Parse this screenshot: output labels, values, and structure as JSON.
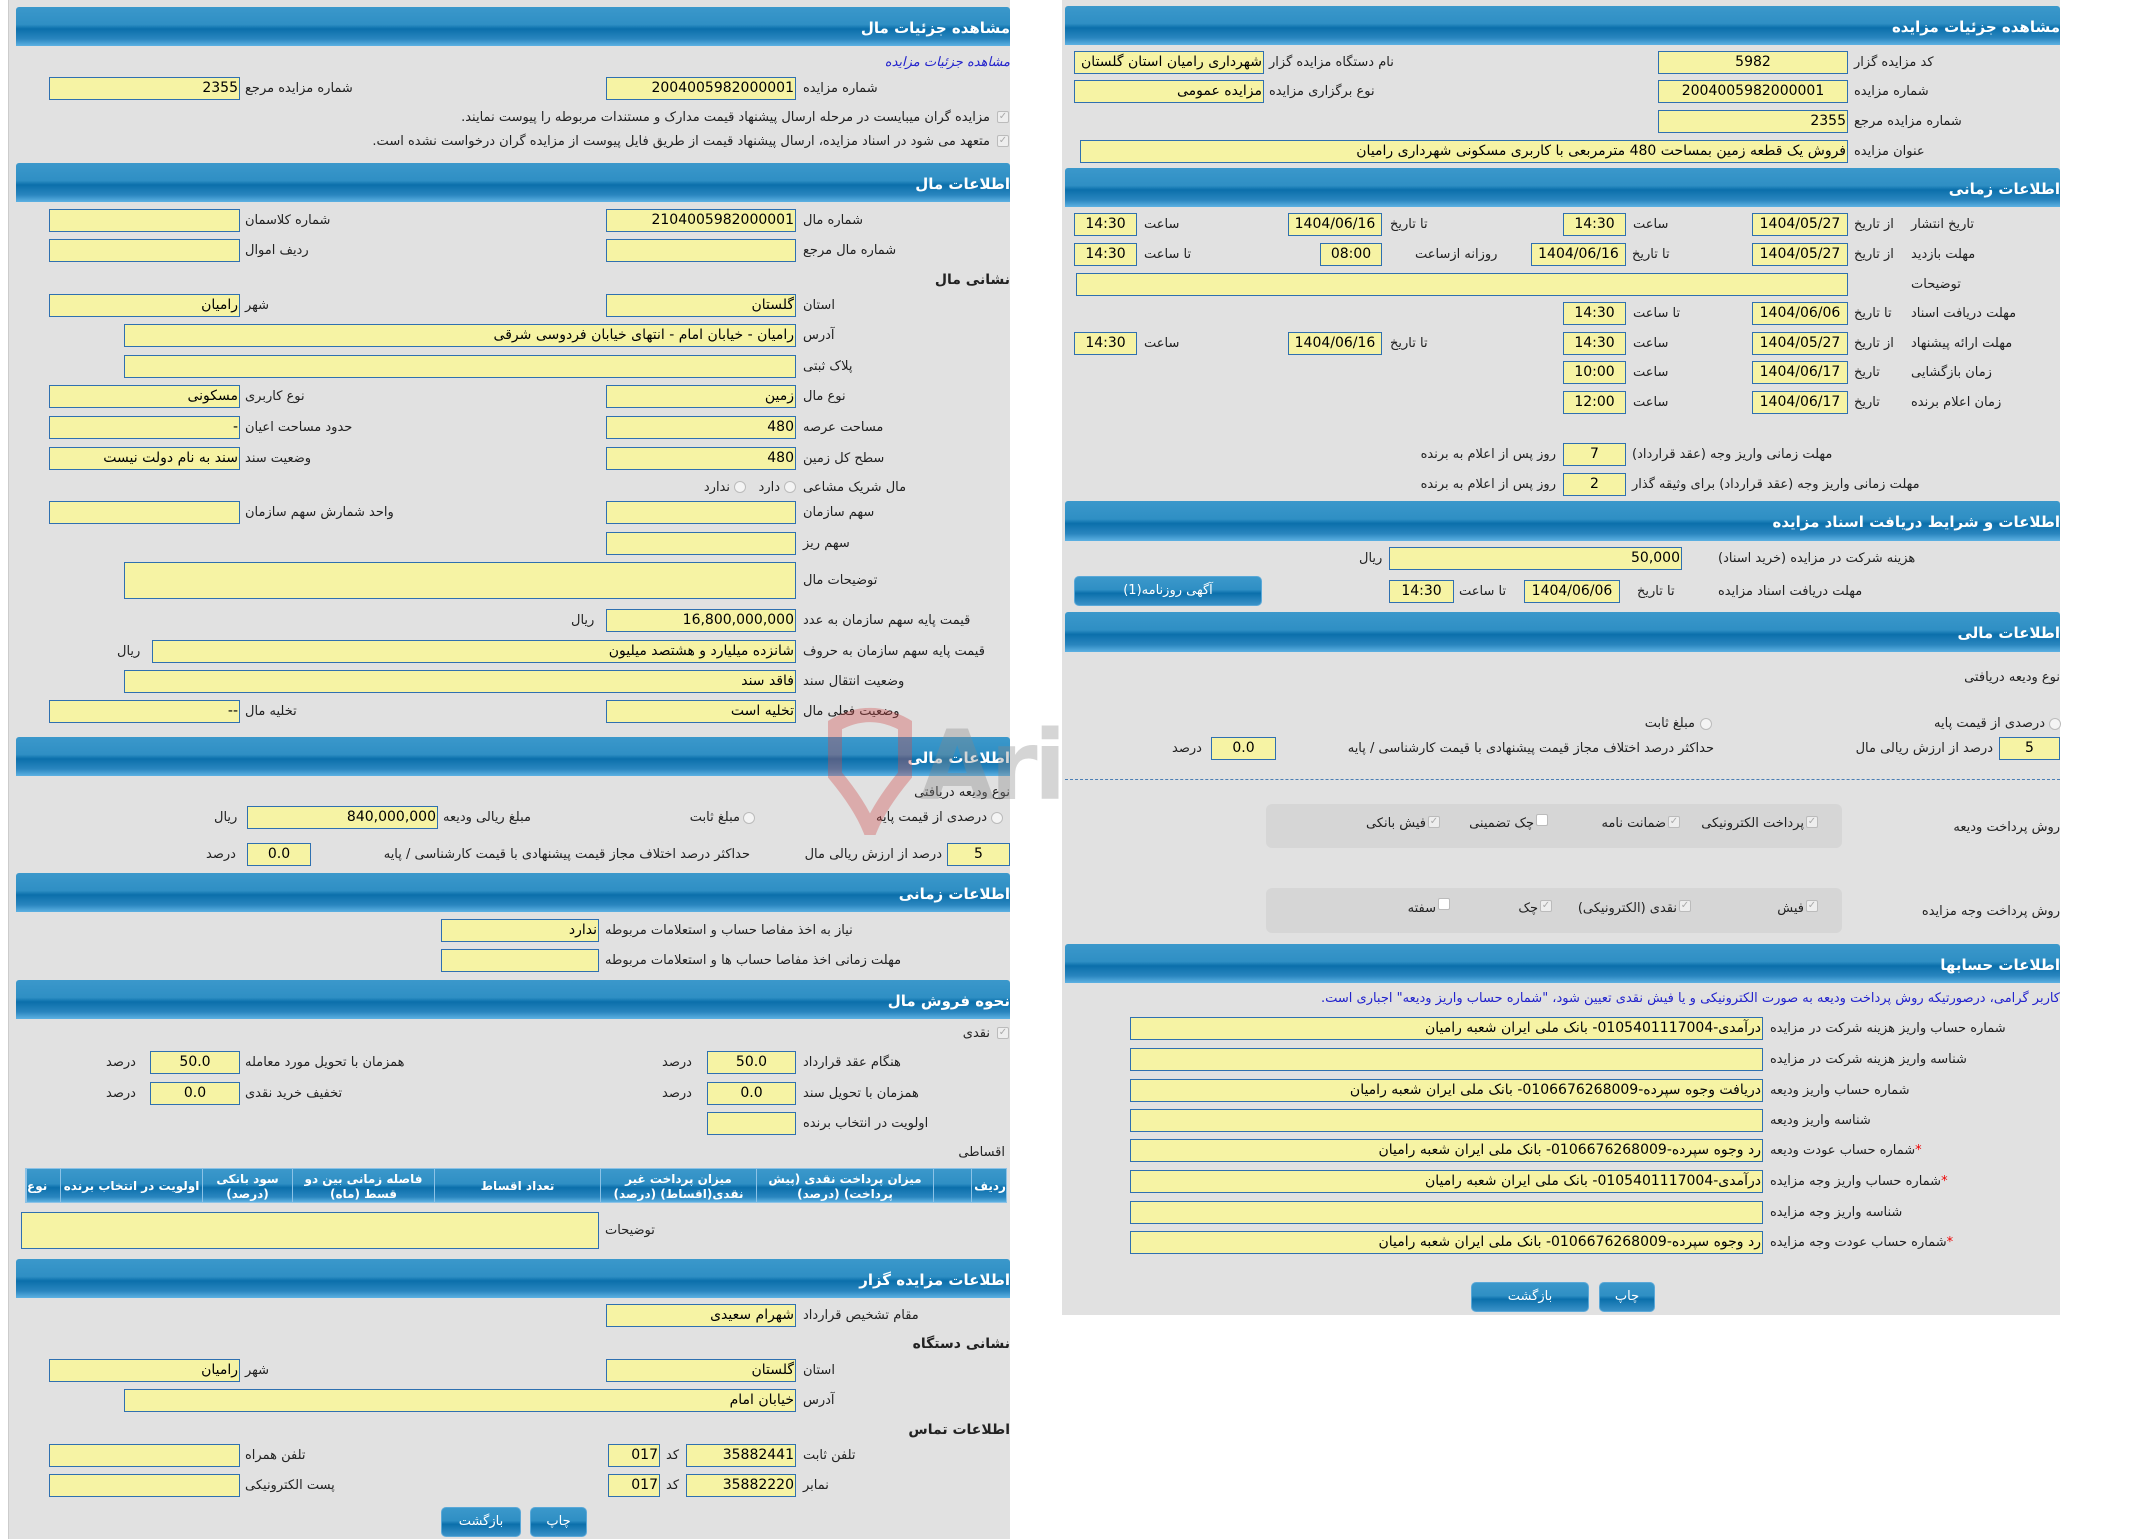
{
  "colors": {
    "header": "#0b6fab",
    "field_bg": "#f6f3a4",
    "field_border": "#2f70b0",
    "panel_bg": "#e1e1e1",
    "link": "#2222cc",
    "required": "#e00000"
  },
  "watermark": "AriaTender.net",
  "common": {
    "currency": "ریال",
    "percent": "درصد",
    "print": "چاپ",
    "back": "بازگشت",
    "required_mark": "*"
  },
  "left": {
    "header": "مشاهده جزئیات مال",
    "link": "مشاهده جزئیات مزایده",
    "auction_no_label": "شماره مزایده",
    "auction_no": "2004005982000001",
    "ref_no_label": "شماره مزایده مرجع",
    "ref_no": "2355",
    "check1": "مزایده گران میبایست در مرحله ارسال پیشنهاد قیمت مدارک و مستندات مربوطه را پیوست نمایند.",
    "check2": "متعهد می شود در اسناد مزایده، ارسال پیشنهاد قیمت از طریق فایل پیوست از مزایده گران درخواست نشده است.",
    "property": {
      "header": "اطلاعات مال",
      "address_heading": "نشانی مال",
      "shared_label": "مال شریک مشاعی",
      "shared_yes": "دارد",
      "shared_no": "ندارد",
      "fields": [
        {
          "label": "شماره مال",
          "value": "2104005982000001"
        },
        {
          "label": "شماره کلاسمان",
          "value": ""
        },
        {
          "label": "شماره مال مرجع",
          "value": ""
        },
        {
          "label": "ردیف اموال",
          "value": ""
        },
        {
          "label": "استان",
          "value": "گلستان"
        },
        {
          "label": "شهر",
          "value": "رامیان"
        },
        {
          "label": "آدرس",
          "value": "رامیان - خیابان امام - انتهای خیابان فردوسی شرقی"
        },
        {
          "label": "پلاک ثبتی",
          "value": ""
        },
        {
          "label": "نوع مال",
          "value": "زمین"
        },
        {
          "label": "نوع کاربری",
          "value": "مسکونی"
        },
        {
          "label": "مساحت عرصه",
          "value": "480"
        },
        {
          "label": "حدود مساحت اعیان",
          "value": "-"
        },
        {
          "label": "سطح کل زمین",
          "value": "480"
        },
        {
          "label": "وضعیت سند",
          "value": "سند به نام دولت نیست"
        },
        {
          "label": "سهم سازمان",
          "value": ""
        },
        {
          "label": "واحد شمارش سهم سازمان",
          "value": ""
        },
        {
          "label": "سهم ریز",
          "value": ""
        },
        {
          "label": "توضیحات مال",
          "value": ""
        },
        {
          "label": "قیمت پایه سهم سازمان به عدد",
          "value": "16,800,000,000"
        },
        {
          "label": "قیمت پایه سهم سازمان به حروف",
          "value": "شانزده میلیارد و هشتصد میلیون"
        },
        {
          "label": "وضعیت انتقال سند",
          "value": "فاقد سند"
        },
        {
          "label": "وضعیت فعلی مال",
          "value": "تخلیه است"
        },
        {
          "label": "تخلیه مال",
          "value": "--"
        }
      ]
    },
    "financial": {
      "header": "اطلاعات مالی",
      "deposit_type_label": "نوع ودیعه دریافتی",
      "opt_percent": "درصدی از قیمت پایه",
      "opt_fixed": "مبلغ ثابت",
      "deposit_amount_label": "مبلغ ریالی ودیعه",
      "deposit_amount": "840,000,000",
      "percent_value": "5",
      "percent_label": "درصد از ارزش ریالی مال",
      "max_diff_label": "حداکثر درصد اختلاف مجاز قیمت پیشنهادی با قیمت کارشناسی / پایه",
      "max_diff": "0.0"
    },
    "time": {
      "header": "اطلاعات زمانی",
      "clearance_label": "نیاز به اخذ مفاصا حساب و استعلامات مربوطه",
      "clearance": "ندارد",
      "deadline_label": "مهلت زمانی اخذ مفاصا حساب ها و استعلامات مربوطه",
      "deadline": ""
    },
    "sale": {
      "header": "نحوه فروش مال",
      "cash": "نقدی",
      "on_contract_label": "هنگام عقد قرارداد",
      "on_contract": "50.0",
      "on_delivery_label": "همزمان با تحویل مورد معامله",
      "on_delivery": "50.0",
      "on_deed_label": "همزمان با تحویل سند",
      "on_deed": "0.0",
      "discount_label": "تخفیف خرید نقدی",
      "discount": "0.0",
      "priority_label": "اولویت در انتخاب برنده",
      "priority": "",
      "installments_label": "اقساطی",
      "columns": [
        "ردیف",
        "",
        "میزان پرداخت نقدی (پیش پرداخت) (درصد)",
        "میزان پرداخت غیر نقدی(اقساط) (درصد)",
        "تعداد اقساط",
        "فاصله زمانی بین دو قسط (ماه)",
        "سود بانکی (درصد)",
        "اولویت در انتخاب برنده",
        "نوع"
      ],
      "notes_label": "توضیحات",
      "notes": ""
    },
    "auctioneer": {
      "header": "اطلاعات مزایده گزار",
      "authority_label": "مقام تشخیص قرارداد",
      "authority": "شهرام سعیدی",
      "address_heading": "نشانی دستگاه",
      "province_label": "استان",
      "province": "گلستان",
      "city_label": "شهر",
      "city": "رامیان",
      "address_label": "آدرس",
      "address": "خیابان امام",
      "contact_heading": "اطلاعات تماس",
      "phone_label": "تلفن ثابت",
      "phone": "35882441",
      "phone_code": "017",
      "code_label": "کد",
      "mobile_label": "تلفن همراه",
      "mobile": "",
      "fax_label": "نمابر",
      "fax": "35882220",
      "fax_code": "017",
      "email_label": "پست الکترونیکی",
      "email": ""
    }
  },
  "right": {
    "header": "مشاهده جزئیات مزایده",
    "auctioneer_code_label": "کد مزایده گزار",
    "auctioneer_code": "5982",
    "org_name_label": "نام دستگاه مزایده گزار",
    "org_name": "شهرداری رامیان استان گلستان",
    "auction_no_label": "شماره مزایده",
    "auction_no": "2004005982000001",
    "type_label": "نوع برگزاری مزایده",
    "type": "مزایده عمومی",
    "ref_no_label": "شماره مزایده مرجع",
    "ref_no": "2355",
    "title_label": "عنوان مزایده",
    "title": "فروش یک قطعه زمین بمساحت 480 مترمربعی با کاربری مسکونی شهرداری رامیان",
    "time": {
      "header": "اطلاعات زمانی",
      "from_date": "از تاریخ",
      "to_date": "تا تاریخ",
      "date": "تاریخ",
      "hour": "ساعت",
      "to_hour": "تا ساعت",
      "daily_from": "روزانه ازساعت",
      "notes_label": "توضیحات",
      "notes": "",
      "publish_label": "تاریخ انتشار",
      "publish_from": "1404/05/27",
      "publish_from_time": "14:30",
      "publish_to": "1404/06/16",
      "publish_to_time": "14:30",
      "visit_label": "مهلت بازدید",
      "visit_from": "1404/05/27",
      "visit_to": "1404/06/16",
      "visit_daily_from": "08:00",
      "visit_to_time": "14:30",
      "docs_label": "مهلت دریافت اسناد",
      "docs_to": "1404/06/06",
      "docs_to_time": "14:30",
      "offer_label": "مهلت ارائه پیشنهاد",
      "offer_from": "1404/05/27",
      "offer_from_time": "14:30",
      "offer_to": "1404/06/16",
      "offer_to_time": "14:30",
      "opening_label": "زمان بازگشایی",
      "opening_date": "1404/06/17",
      "opening_time": "10:00",
      "winner_label": "زمان اعلام برنده",
      "winner_date": "1404/06/17",
      "winner_time": "12:00",
      "pay_label": "مهلت زمانی واریز وجه (عقد قرارداد)",
      "pay_days": "7",
      "pay_bail_label": "مهلت زمانی واریز وجه (عقد قرارداد) برای وثیقه گذار",
      "pay_bail_days": "2",
      "days_after": "روز پس از اعلام به برنده"
    },
    "docs": {
      "header": "اطلاعات و شرایط دریافت اسناد مزایده",
      "fee_label": "هزینه شرکت در مزایده (خرید اسناد)",
      "fee": "50,000",
      "deadline_label": "مهلت دریافت اسناد مزایده",
      "deadline_date": "1404/06/06",
      "deadline_time": "14:30",
      "newspaper_button": "آگهی روزنامه(1)"
    },
    "financial": {
      "header": "اطلاعات مالی",
      "deposit_type_label": "نوع ودیعه دریافتی",
      "opt_percent": "درصدی از قیمت پایه",
      "opt_fixed": "مبلغ ثابت",
      "percent_value": "5",
      "percent_label": "درصد از ارزش ریالی مال",
      "max_diff_label": "حداکثر درصد اختلاف مجاز قیمت پیشنهادی با قیمت کارشناسی / پایه",
      "max_diff": "0.0",
      "deposit_method_label": "روش پرداخت ودیعه",
      "deposit_methods": [
        {
          "label": "پرداخت الکترونیکی",
          "checked": true
        },
        {
          "label": "ضمانت نامه",
          "checked": true
        },
        {
          "label": "چک تضمینی",
          "checked": false
        },
        {
          "label": "فیش بانکی",
          "checked": true
        }
      ],
      "payment_method_label": "روش پرداخت وجه مزایده",
      "payment_methods": [
        {
          "label": "فیش",
          "checked": true
        },
        {
          "label": "نقدی (الکترونیکی)",
          "checked": true
        },
        {
          "label": "چک",
          "checked": true
        },
        {
          "label": "سفته",
          "checked": false
        }
      ]
    },
    "accounts": {
      "header": "اطلاعات حسابها",
      "note": "کاربر گرامی، درصورتیکه روش پرداخت ودیعه به صورت الکترونیکی و یا فیش نقدی تعیین شود، \"شماره حساب واریز ودیعه\" اجباری است.",
      "rows": [
        {
          "label": "شماره حساب واریز هزینه شرکت در مزایده",
          "value": "درآمدی-0105401117004- بانک ملی ایران شعبه رامیان",
          "required": false
        },
        {
          "label": "شناسه واریز هزینه شرکت در مزایده",
          "value": "",
          "required": false
        },
        {
          "label": "شماره حساب واریز ودیعه",
          "value": "دریافت وجوه سپرده-0106676268009- بانک ملی ایران شعبه رامیان",
          "required": false
        },
        {
          "label": "شناسه واریز ودیعه",
          "value": "",
          "required": false
        },
        {
          "label": "شماره حساب عودت ودیعه",
          "value": "رد وجوه سپرده-0106676268009- بانک ملی ایران شعبه رامیان",
          "required": true
        },
        {
          "label": "شماره حساب واریز وجه مزایده",
          "value": "درآمدی-0105401117004- بانک ملی ایران شعبه رامیان",
          "required": true
        },
        {
          "label": "شناسه واریز وجه مزایده",
          "value": "",
          "required": false
        },
        {
          "label": "شماره حساب عودت وجه مزایده",
          "value": "رد وجوه سپرده-0106676268009- بانک ملی ایران شعبه رامیان",
          "required": true
        }
      ]
    }
  }
}
